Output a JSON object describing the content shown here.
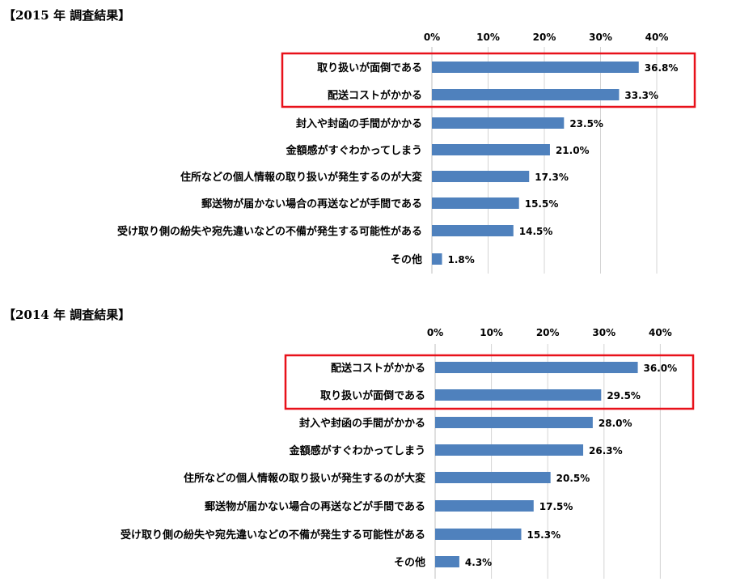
{
  "chart_data": [
    {
      "type": "bar",
      "orientation": "horizontal",
      "title": "【2015 年  調査結果】",
      "xlim": [
        0,
        40
      ],
      "xticks": [
        "0%",
        "10%",
        "20%",
        "30%",
        "40%"
      ],
      "categories": [
        "取り扱いが面倒である",
        "配送コストがかかる",
        "封入や封函の手間がかかる",
        "金額感がすぐわかってしまう",
        "住所などの個人情報の取り扱いが発生するのが大変",
        "郵送物が届かない場合の再送などが手間である",
        "受け取り側の紛失や宛先違いなどの不備が発生する可能性がある",
        "その他"
      ],
      "values": [
        36.8,
        33.3,
        23.5,
        21.0,
        17.3,
        15.5,
        14.5,
        1.8
      ],
      "value_labels": [
        "36.8%",
        "33.3%",
        "23.5%",
        "21.0%",
        "17.3%",
        "15.5%",
        "14.5%",
        "1.8%"
      ],
      "highlighted_categories": [
        0,
        1
      ],
      "grid": true
    },
    {
      "type": "bar",
      "orientation": "horizontal",
      "title": "【2014 年  調査結果】",
      "xlim": [
        0,
        40
      ],
      "xticks": [
        "0%",
        "10%",
        "20%",
        "30%",
        "40%"
      ],
      "categories": [
        "配送コストがかかる",
        "取り扱いが面倒である",
        "封入や封函の手間がかかる",
        "金額感がすぐわかってしまう",
        "住所などの個人情報の取り扱いが発生するのが大変",
        "郵送物が届かない場合の再送などが手間である",
        "受け取り側の紛失や宛先違いなどの不備が発生する可能性がある",
        "その他"
      ],
      "values": [
        36.0,
        29.5,
        28.0,
        26.3,
        20.5,
        17.5,
        15.3,
        4.3
      ],
      "value_labels": [
        "36.0%",
        "29.5%",
        "28.0%",
        "26.3%",
        "20.5%",
        "17.5%",
        "15.3%",
        "4.3%"
      ],
      "highlighted_categories": [
        0,
        1
      ],
      "grid": true
    }
  ],
  "colors": {
    "bar": "#4f81bd",
    "highlight": "#e8111a"
  }
}
